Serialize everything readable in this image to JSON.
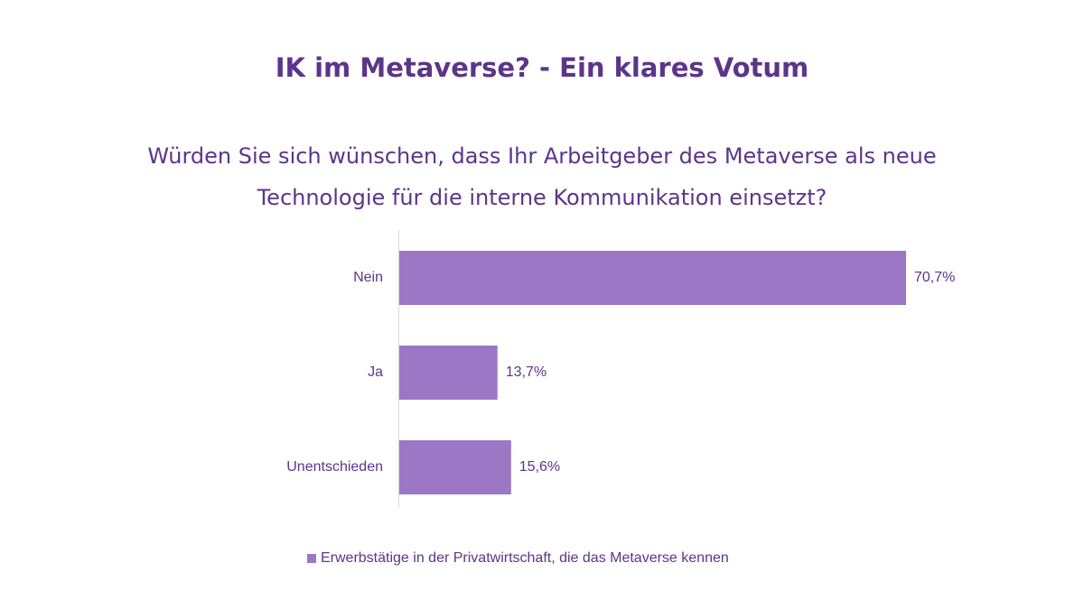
{
  "chart_data": {
    "type": "bar",
    "orientation": "horizontal",
    "title": "IK im Metaverse? - Ein klares Votum",
    "subtitle": "Würden Sie sich wünschen, dass Ihr Arbeitgeber des Metaverse als neue Technologie für die interne Kommunikation einsetzt?",
    "categories": [
      "Nein",
      "Ja",
      "Unentschieden"
    ],
    "series": [
      {
        "name": "Erwerbstätige in der Privatwirtschaft, die das Metaverse kennen",
        "values": [
          70.7,
          13.7,
          15.6
        ],
        "labels": [
          "70,7%",
          "13,7%",
          "15,6%"
        ]
      }
    ],
    "xlim": [
      0,
      100
    ],
    "grid": false,
    "legend_position": "bottom",
    "bar_color": "#9b77c6",
    "text_color": "#5c3589"
  }
}
